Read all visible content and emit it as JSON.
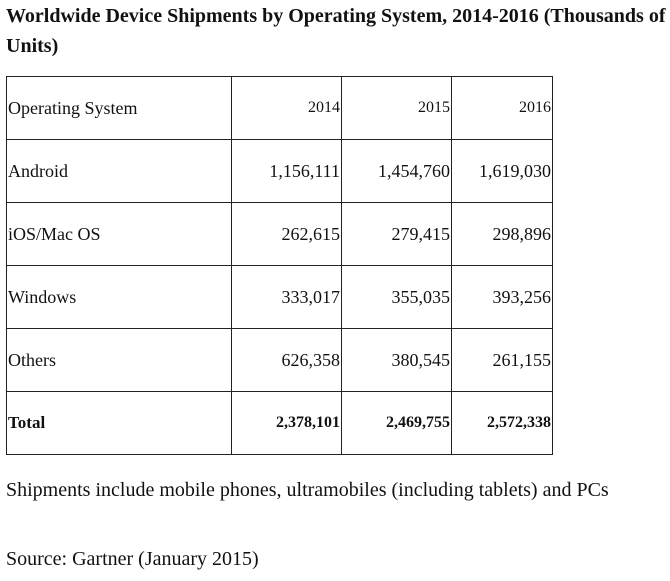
{
  "title": "Worldwide Device Shipments by Operating System, 2014-2016 (Thousands of Units)",
  "table": {
    "header": {
      "label": "Operating System",
      "years": [
        "2014",
        "2015",
        "2016"
      ]
    },
    "rows": [
      {
        "os": "Android",
        "values": [
          "1,156,111",
          "1,454,760",
          "1,619,030"
        ]
      },
      {
        "os": "iOS/Mac OS",
        "values": [
          "262,615",
          "279,415",
          "298,896"
        ]
      },
      {
        "os": "Windows",
        "values": [
          "333,017",
          "355,035",
          "393,256"
        ]
      },
      {
        "os": "Others",
        "values": [
          "626,358",
          "380,545",
          "261,155"
        ]
      }
    ],
    "total": {
      "os": "Total",
      "values": [
        "2,378,101",
        "2,469,755",
        "2,572,338"
      ]
    }
  },
  "note": "Shipments include mobile phones, ultramobiles (including tablets) and PCs",
  "source": "Source: Gartner (January 2015)"
}
